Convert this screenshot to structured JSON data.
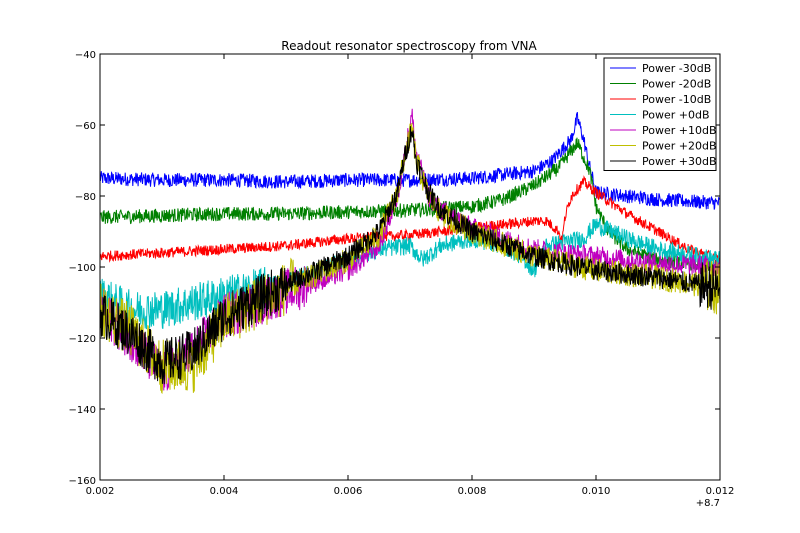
{
  "chart_data": {
    "type": "line",
    "title": "Readout resonator spectroscopy from VNA",
    "xlabel": "",
    "ylabel": "",
    "x_offset_label": "+8.7",
    "xlim": [
      0.002,
      0.012
    ],
    "ylim": [
      -160,
      -40
    ],
    "x_ticks": [
      0.002,
      0.004,
      0.006,
      0.008,
      0.01,
      0.012
    ],
    "x_tick_labels": [
      "0.002",
      "0.004",
      "0.006",
      "0.008",
      "0.010",
      "0.012"
    ],
    "y_ticks": [
      -160,
      -140,
      -120,
      -100,
      -80,
      -60,
      -40
    ],
    "y_tick_labels": [
      "−160",
      "−140",
      "−120",
      "−100",
      "−80",
      "−60",
      "−40"
    ],
    "grid": false,
    "legend_position": "top-right",
    "series": [
      {
        "name": "Power -30dB",
        "color": "#0000ff",
        "noise": 2.0,
        "x": [
          0.002,
          0.003,
          0.004,
          0.005,
          0.006,
          0.007,
          0.008,
          0.009,
          0.0093,
          0.0096,
          0.0097,
          0.0098,
          0.0099,
          0.01,
          0.0105,
          0.011,
          0.012
        ],
        "y": [
          -75,
          -75.5,
          -75.5,
          -76,
          -75.5,
          -75.5,
          -75,
          -73,
          -70,
          -64,
          -58,
          -64,
          -72,
          -79,
          -80,
          -81,
          -82
        ]
      },
      {
        "name": "Power -20dB",
        "color": "#008000",
        "noise": 2.0,
        "x": [
          0.002,
          0.003,
          0.004,
          0.005,
          0.006,
          0.007,
          0.008,
          0.0085,
          0.009,
          0.0094,
          0.0097,
          0.0099,
          0.01,
          0.0102,
          0.0105,
          0.011,
          0.0115,
          0.012
        ],
        "y": [
          -86,
          -85.5,
          -85,
          -85,
          -84.5,
          -84,
          -83,
          -81,
          -77,
          -72,
          -65,
          -73,
          -83,
          -90,
          -95,
          -98,
          -99,
          -100
        ]
      },
      {
        "name": "Power -10dB",
        "color": "#ff0000",
        "noise": 1.5,
        "x": [
          0.002,
          0.003,
          0.004,
          0.005,
          0.006,
          0.007,
          0.0075,
          0.008,
          0.0085,
          0.0088,
          0.009,
          0.0092,
          0.0094,
          0.00945,
          0.0095,
          0.0096,
          0.0098,
          0.01,
          0.0105,
          0.011,
          0.0115,
          0.012
        ],
        "y": [
          -97,
          -96,
          -95,
          -94,
          -92,
          -91,
          -90,
          -89,
          -88,
          -87.5,
          -87,
          -87,
          -90,
          -93,
          -86,
          -80,
          -76,
          -79,
          -85,
          -90,
          -95,
          -98
        ]
      },
      {
        "name": "Power +0dB",
        "color": "#00bfbf",
        "noise": 2.5,
        "x": [
          0.002,
          0.0025,
          0.003,
          0.0035,
          0.004,
          0.005,
          0.006,
          0.0065,
          0.007,
          0.0072,
          0.0075,
          0.008,
          0.0085,
          0.0088,
          0.009,
          0.0092,
          0.0095,
          0.0098,
          0.01,
          0.0105,
          0.011,
          0.012
        ],
        "y": [
          -108,
          -112,
          -112,
          -110,
          -108,
          -104,
          -98,
          -95,
          -94,
          -98,
          -94,
          -92,
          -94,
          -97,
          -101,
          -94,
          -93,
          -92,
          -88,
          -92,
          -95,
          -98
        ]
      },
      {
        "name": "Power +10dB",
        "color": "#bf00bf",
        "noise": 3.0,
        "x": [
          0.002,
          0.0025,
          0.003,
          0.0035,
          0.004,
          0.005,
          0.006,
          0.0065,
          0.0068,
          0.0069,
          0.00703,
          0.0071,
          0.0073,
          0.0075,
          0.008,
          0.009,
          0.01,
          0.011,
          0.012
        ],
        "y": [
          -112,
          -120,
          -130,
          -124,
          -114,
          -107,
          -101,
          -94,
          -80,
          -70,
          -57,
          -68,
          -80,
          -84,
          -89,
          -95,
          -97,
          -99,
          -100
        ]
      },
      {
        "name": "Power +20dB",
        "color": "#bfbf00",
        "noise": 3.5,
        "x": [
          0.002,
          0.0025,
          0.003,
          0.0035,
          0.004,
          0.005,
          0.006,
          0.0065,
          0.0068,
          0.0069,
          0.00703,
          0.0071,
          0.0073,
          0.0075,
          0.008,
          0.009,
          0.01,
          0.011,
          0.012
        ],
        "y": [
          -112,
          -118,
          -128,
          -128,
          -115,
          -106,
          -98,
          -91,
          -79,
          -70,
          -61,
          -70,
          -80,
          -85,
          -90,
          -97,
          -101,
          -103,
          -106
        ]
      },
      {
        "name": "Power +30dB",
        "color": "#000000",
        "noise": 3.0,
        "x": [
          0.002,
          0.0025,
          0.003,
          0.0035,
          0.004,
          0.005,
          0.006,
          0.0065,
          0.0068,
          0.0069,
          0.00703,
          0.0071,
          0.0073,
          0.0075,
          0.008,
          0.009,
          0.01,
          0.011,
          0.012
        ],
        "y": [
          -113,
          -119,
          -127,
          -124,
          -114,
          -105,
          -97,
          -90,
          -79,
          -70,
          -61,
          -70,
          -79,
          -84,
          -90,
          -97,
          -101,
          -103,
          -106
        ]
      }
    ]
  }
}
